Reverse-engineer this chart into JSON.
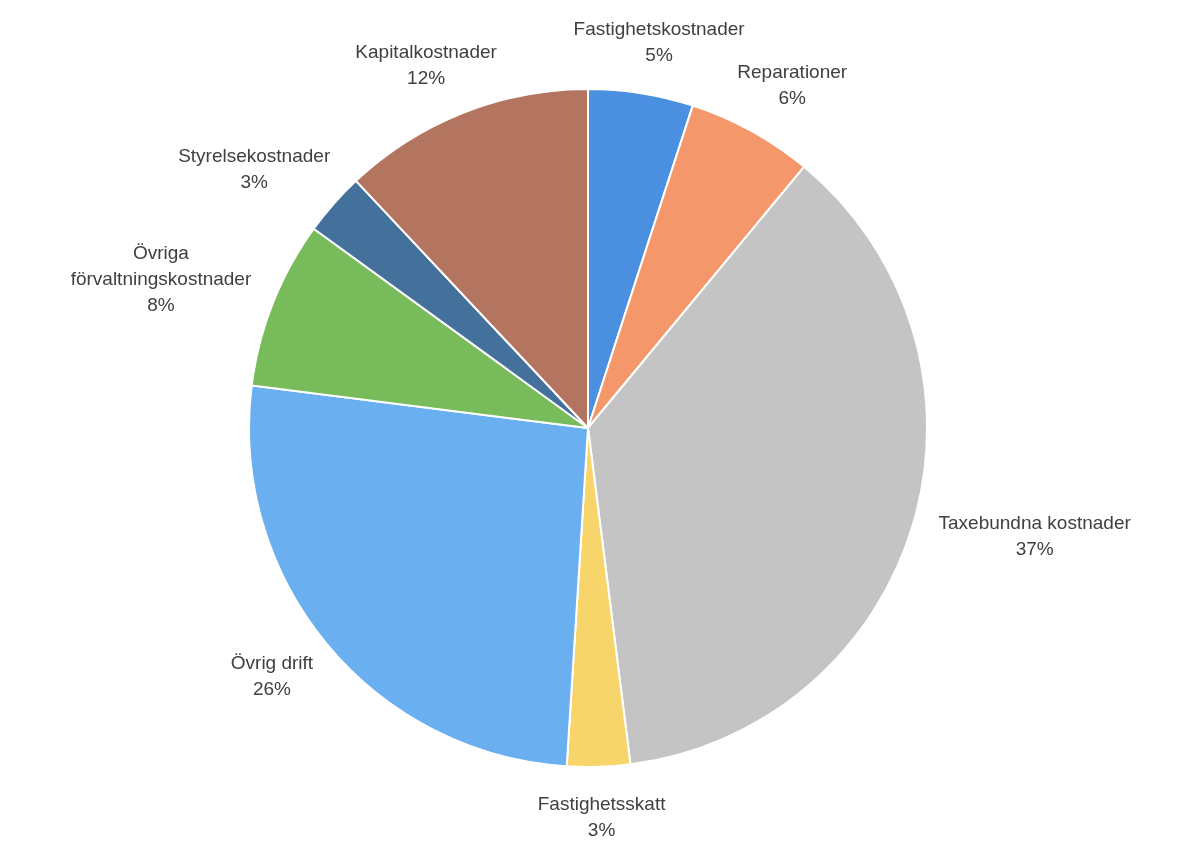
{
  "chart_data": {
    "type": "pie",
    "categories": [
      "Fastighetskostnader",
      "Reparationer",
      "Taxebundna kostnader",
      "Fastighetsskatt",
      "Övrig drift",
      "Övriga förvaltningskostnader",
      "Styrelsekostnader",
      "Kapitalkostnader"
    ],
    "values": [
      5,
      6,
      37,
      3,
      26,
      8,
      3,
      12
    ],
    "value_labels": [
      "5%",
      "6%",
      "37%",
      "3%",
      "26%",
      "8%",
      "3%",
      "12%"
    ],
    "colors": [
      "#4a8fe0",
      "#f4976a",
      "#c4c4c4",
      "#f7d56a",
      "#6aaff0",
      "#77bb5a",
      "#44709c",
      "#b47560"
    ],
    "legend": false
  }
}
